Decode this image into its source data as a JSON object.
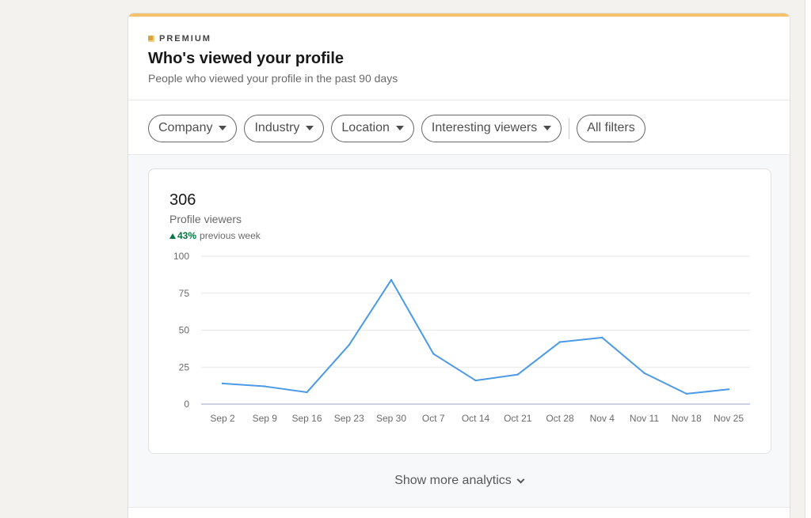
{
  "header": {
    "badge": "PREMIUM",
    "title": "Who's viewed your profile",
    "subtitle": "People who viewed your profile in the past 90 days"
  },
  "filters": [
    {
      "label": "Company",
      "has_dropdown": true
    },
    {
      "label": "Industry",
      "has_dropdown": true
    },
    {
      "label": "Location",
      "has_dropdown": true
    },
    {
      "label": "Interesting viewers",
      "has_dropdown": true
    },
    {
      "label": "All filters",
      "has_dropdown": false
    }
  ],
  "metric": {
    "value": "306",
    "label": "Profile viewers",
    "delta_pct": "43%",
    "delta_text": "previous week",
    "delta_direction": "up"
  },
  "footer": {
    "show_more_label": "Show more analytics"
  },
  "colors": {
    "accent_bar": "#f5c26b",
    "line": "#4a9ae8",
    "positive": "#057642"
  },
  "chart_data": {
    "type": "line",
    "categories": [
      "Sep 2",
      "Sep 9",
      "Sep 16",
      "Sep 23",
      "Sep 30",
      "Oct 7",
      "Oct 14",
      "Oct 21",
      "Oct 28",
      "Nov 4",
      "Nov 11",
      "Nov 18",
      "Nov 25"
    ],
    "series": [
      {
        "values": [
          14,
          12,
          8,
          40,
          84,
          34,
          16,
          20,
          42,
          45,
          21,
          7,
          10
        ]
      }
    ],
    "ylim": [
      0,
      100
    ],
    "yticks": [
      0,
      25,
      50,
      75,
      100
    ],
    "grid": true
  }
}
